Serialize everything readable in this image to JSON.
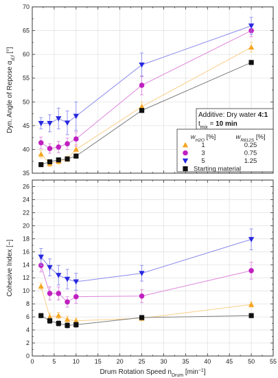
{
  "chart_data": [
    {
      "type": "line",
      "panel": "top",
      "ylabel": "Dyn. Angle of Repose α",
      "ylabel_sub": "d,f",
      "ylabel_unit": "[°]",
      "ylim": [
        35,
        70
      ],
      "yticks": [
        35,
        40,
        45,
        50,
        55,
        60,
        65,
        70
      ],
      "xlim": [
        0,
        55
      ],
      "grid": true,
      "annotation": {
        "line1_prefix": "Additive: Dry water ",
        "line1_bold": "4:1",
        "line2_prefix": "t",
        "line2_sub": "mix",
        "line2_mid": " = ",
        "line2_bold": "10 min"
      },
      "legend": {
        "placement": "center-right",
        "header_col1_base": "w",
        "header_col1_sub": "H2O",
        "header_col1_unit": " [%]",
        "header_col2_base": "w",
        "header_col2_sub": "R812S",
        "header_col2_unit": " [%]",
        "rows": [
          {
            "series": 0,
            "col1": "1",
            "col2": "0.25"
          },
          {
            "series": 1,
            "col1": "3",
            "col2": "0.75"
          },
          {
            "series": 2,
            "col1": "5",
            "col2": "1.25"
          },
          {
            "series": 3,
            "col1": "Starting material",
            "col2": ""
          }
        ]
      },
      "series": [
        {
          "marker": "triangle-up",
          "color": "#f5a623",
          "x": [
            2,
            4,
            6,
            8,
            10,
            25,
            50
          ],
          "y": [
            39.0,
            37.0,
            37.5,
            38.0,
            40.0,
            49.0,
            61.5
          ],
          "err": [
            0.8,
            0.6,
            0.6,
            0.6,
            1.0,
            1.0,
            1.0
          ]
        },
        {
          "marker": "circle",
          "color": "#c020c0",
          "x": [
            2,
            4,
            6,
            8,
            10,
            25,
            50
          ],
          "y": [
            41.4,
            40.2,
            40.5,
            41.2,
            42.2,
            53.5,
            65.0
          ],
          "err": [
            1.2,
            1.0,
            1.2,
            1.2,
            1.5,
            2.0,
            1.3
          ]
        },
        {
          "marker": "triangle-down",
          "color": "#2828e0",
          "x": [
            2,
            4,
            6,
            8,
            10,
            25,
            50
          ],
          "y": [
            45.5,
            45.5,
            46.5,
            45.6,
            47.0,
            57.8,
            66.0
          ],
          "err": [
            1.2,
            1.8,
            2.2,
            2.5,
            3.0,
            2.5,
            1.8
          ]
        },
        {
          "marker": "square",
          "color": "#111111",
          "x": [
            2,
            4,
            6,
            8,
            10,
            25,
            50
          ],
          "y": [
            36.8,
            37.4,
            37.8,
            38.0,
            38.6,
            48.2,
            58.3
          ],
          "err": [
            0.3,
            0.3,
            0.3,
            0.3,
            0.3,
            0.3,
            0.3
          ]
        }
      ]
    },
    {
      "type": "line",
      "panel": "bottom",
      "ylabel": "Cohesive Index [−]",
      "xlabel_prefix": "Drum Rotation Speed n",
      "xlabel_sub": "Drum",
      "xlabel_unit": " [min",
      "xlabel_sup": "−1",
      "xlabel_close": "]",
      "ylim": [
        0,
        27
      ],
      "yticks": [
        0,
        2,
        4,
        6,
        8,
        10,
        12,
        14,
        16,
        18,
        20,
        22,
        24,
        26
      ],
      "xlim": [
        0,
        55
      ],
      "xticks": [
        0,
        5,
        10,
        15,
        20,
        25,
        30,
        35,
        40,
        45,
        50,
        55
      ],
      "grid": true,
      "series": [
        {
          "marker": "triangle-up",
          "color": "#f5a623",
          "x": [
            2,
            4,
            6,
            8,
            10,
            25,
            50
          ],
          "y": [
            10.7,
            6.0,
            6.2,
            5.6,
            5.4,
            5.8,
            7.9
          ],
          "err": [
            0.5,
            0.6,
            0.5,
            0.5,
            0.4,
            0.4,
            0.4
          ]
        },
        {
          "marker": "circle",
          "color": "#c020c0",
          "x": [
            2,
            4,
            6,
            8,
            10,
            25,
            50
          ],
          "y": [
            13.9,
            9.6,
            9.6,
            8.3,
            9.1,
            9.2,
            13.1
          ],
          "err": [
            1.0,
            1.0,
            1.0,
            0.8,
            1.0,
            1.0,
            1.3
          ]
        },
        {
          "marker": "triangle-down",
          "color": "#2828e0",
          "x": [
            2,
            4,
            6,
            8,
            10,
            25,
            50
          ],
          "y": [
            15.2,
            13.6,
            12.4,
            11.8,
            11.4,
            12.7,
            17.9
          ],
          "err": [
            1.3,
            1.3,
            1.5,
            1.5,
            1.3,
            1.2,
            1.6
          ]
        },
        {
          "marker": "square",
          "color": "#111111",
          "x": [
            2,
            4,
            6,
            8,
            10,
            25,
            50
          ],
          "y": [
            6.2,
            5.4,
            5.0,
            4.7,
            4.8,
            5.9,
            6.2
          ],
          "err": [
            0.3,
            0.4,
            0.4,
            0.4,
            0.4,
            0.3,
            0.3
          ]
        }
      ]
    }
  ]
}
